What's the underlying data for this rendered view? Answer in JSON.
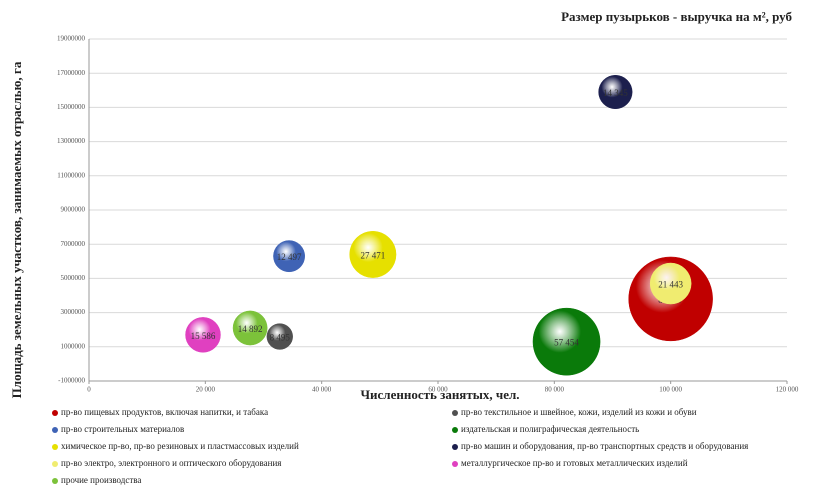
{
  "chart_data": {
    "type": "bubble",
    "title": "Размер пузырьков - выручка на м², руб",
    "x_label": "Численность занятых, чел.",
    "y_label": "Площадь земельных участков, занимаемых отраслью, га",
    "xlim": [
      0,
      120000
    ],
    "xticks": [
      0,
      {
        "value": 20000,
        "label": "20 000"
      },
      {
        "value": 40000,
        "label": "40 000"
      },
      {
        "value": 60000,
        "label": "60 000"
      },
      {
        "value": 80000,
        "label": "80 000"
      },
      {
        "value": 100000,
        "label": "100 000"
      },
      {
        "value": 120000,
        "label": "120 000"
      }
    ],
    "ylim": [
      -1000000,
      19000000
    ],
    "yticks": [
      -1000000,
      1000000,
      3000000,
      5000000,
      7000000,
      9000000,
      11000000,
      13000000,
      15000000,
      17000000,
      19000000
    ],
    "grid": true,
    "series": [
      {
        "name": "пр-во пищевых продуктов, включая напитки, и табака",
        "color": "#c00000",
        "x": [
          100000
        ],
        "values": [
          3800000
        ],
        "sizes": [
          89827
        ],
        "value_labels": [
          "89 827"
        ]
      },
      {
        "name": "пр-во текстильное и швейное, кожи, изделий из кожи и обуви",
        "color": "#505050",
        "x": [
          32800
        ],
        "values": [
          1600000
        ],
        "sizes": [
          8495
        ],
        "value_labels": [
          "8 495"
        ]
      },
      {
        "name": "пр-во строительных материалов",
        "color": "#3f63b5",
        "x": [
          34400
        ],
        "values": [
          6300000
        ],
        "sizes": [
          12497
        ],
        "value_labels": [
          "12 497"
        ]
      },
      {
        "name": "издательская и полиграфическая деятельность",
        "color": "#0a7a0a",
        "x": [
          82100
        ],
        "values": [
          1300000
        ],
        "sizes": [
          57454
        ],
        "value_labels": [
          "57 454"
        ]
      },
      {
        "name": "химическое пр-во, пр-во резиновых и пластмассовых изделий",
        "color": "#e6e000",
        "x": [
          48800
        ],
        "values": [
          6400000
        ],
        "sizes": [
          27471
        ],
        "value_labels": [
          "27 471"
        ]
      },
      {
        "name": "пр-во машин и оборудования, пр-во транспортных средств и оборудования",
        "color": "#1c1f4d",
        "x": [
          90500
        ],
        "values": [
          15900000
        ],
        "sizes": [
          14345
        ],
        "value_labels": [
          "14 345"
        ]
      },
      {
        "name": "пр-во электро, электронного и оптического оборудования",
        "color": "#f0ec70",
        "x": [
          100000
        ],
        "values": [
          4700000
        ],
        "sizes": [
          21443
        ],
        "value_labels": [
          "21 443"
        ]
      },
      {
        "name": "металлургическое пр-во и готовых металлических изделий",
        "color": "#e040c0",
        "x": [
          19600
        ],
        "values": [
          1700000
        ],
        "sizes": [
          15586
        ],
        "value_labels": [
          "15 586"
        ]
      },
      {
        "name": "прочие производства",
        "color": "#7cc23a",
        "x": [
          27700
        ],
        "values": [
          2100000
        ],
        "sizes": [
          14892
        ],
        "value_labels": [
          "14 892"
        ]
      }
    ]
  }
}
